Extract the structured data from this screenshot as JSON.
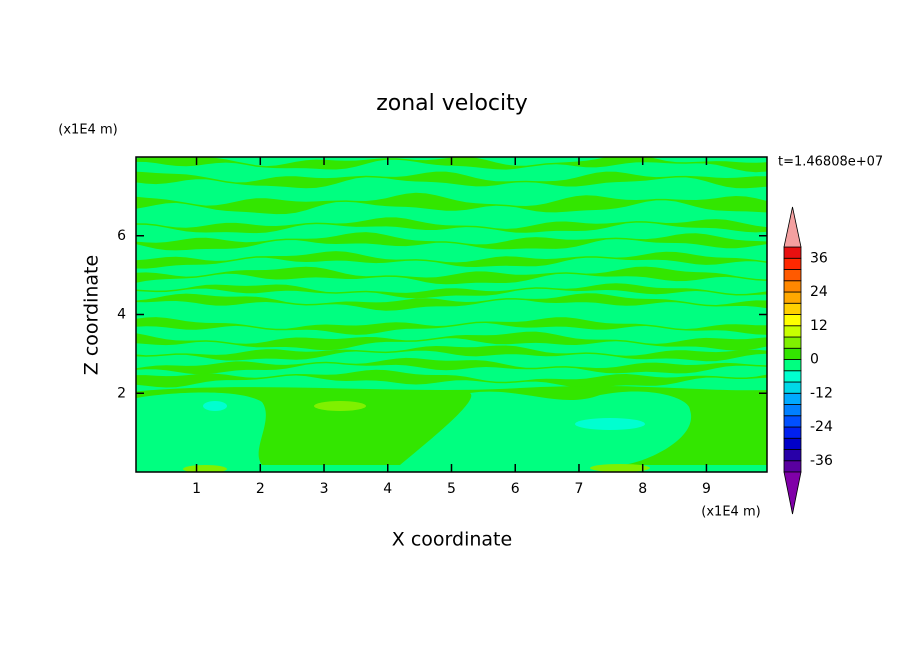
{
  "chart_data": {
    "type": "contour",
    "title": "zonal velocity",
    "xlabel": "X coordinate",
    "ylabel": "Z coordinate",
    "x_unit": "(x1E4 m)",
    "y_unit": "(x1E4 m)",
    "annotation": "t=1.46808e+07",
    "xlim": [
      0.05,
      9.95
    ],
    "ylim": [
      0,
      8
    ],
    "xticks": [
      1,
      2,
      3,
      4,
      5,
      6,
      7,
      8,
      9
    ],
    "yticks": [
      2,
      4,
      6
    ],
    "colorbar": {
      "levels": [
        -40,
        -36,
        -32,
        -28,
        -24,
        -20,
        -16,
        -12,
        -8,
        -4,
        0,
        4,
        8,
        12,
        16,
        20,
        24,
        28,
        32,
        36,
        40
      ],
      "colors": [
        "#5a00a0",
        "#2800a8",
        "#0000c8",
        "#0020f0",
        "#0050ff",
        "#0080ff",
        "#00aaff",
        "#00d8e8",
        "#00ffd0",
        "#00ff80",
        "#33e600",
        "#80f000",
        "#c8ff00",
        "#ffff00",
        "#ffd000",
        "#ffa800",
        "#ff8800",
        "#ff5a00",
        "#ff2800",
        "#e81010"
      ],
      "ticks": [
        -36,
        -24,
        -12,
        0,
        12,
        24,
        36
      ],
      "over_color": "#f4a0a0",
      "under_color": "#8000a8"
    }
  }
}
